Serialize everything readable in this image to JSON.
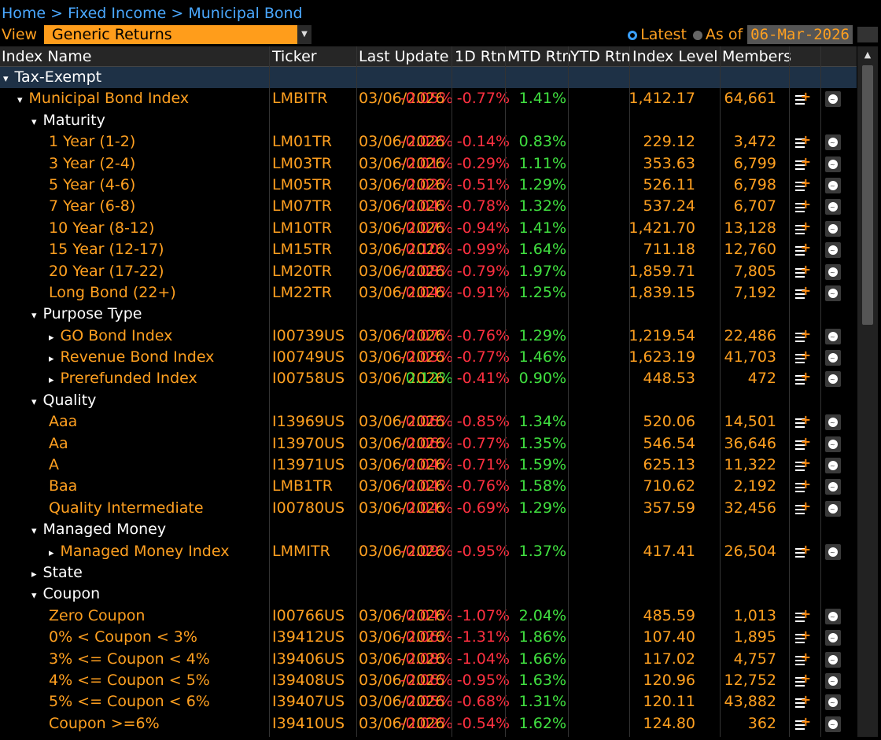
{
  "breadcrumb": {
    "home": "Home",
    "level1": "Fixed Income",
    "level2": "Municipal Bond",
    "sep": ">"
  },
  "view": {
    "label": "View",
    "selected": "Generic Returns"
  },
  "asof": {
    "latest": "Latest",
    "as_of": "As of",
    "date": "06-Mar-2026"
  },
  "columns": {
    "name": "Index Name",
    "ticker": "Ticker",
    "last_update": "Last Update",
    "d1": "1D Rtn",
    "mtd": "MTD Rtn",
    "ytd": "YTD Rtn",
    "level": "Index Level",
    "members": "Members"
  },
  "rows": [
    {
      "type": "section",
      "indent": 0,
      "expander": "▾",
      "name": "Tax-Exempt"
    },
    {
      "type": "data",
      "indent": 1,
      "expander": "▾",
      "name": "Municipal Bond Index",
      "name_color": "orange",
      "ticker": "LMBITR",
      "date": "03/06/2026",
      "d1": "-0.05%",
      "mtd": "-0.77%",
      "ytd": "1.41%",
      "level": "1,412.17",
      "members": "64,661"
    },
    {
      "type": "group",
      "indent": 2,
      "expander": "▾",
      "name": "Maturity"
    },
    {
      "type": "data",
      "indent": 3,
      "expander": "",
      "name": "1 Year (1-2)",
      "name_color": "orange",
      "ticker": "LM01TR",
      "date": "03/06/2026",
      "d1": "-0.02%",
      "mtd": "-0.14%",
      "ytd": "0.83%",
      "level": "229.12",
      "members": "3,472"
    },
    {
      "type": "data",
      "indent": 3,
      "expander": "",
      "name": "3 Year (2-4)",
      "name_color": "orange",
      "ticker": "LM03TR",
      "date": "03/06/2026",
      "d1": "-0.01%",
      "mtd": "-0.29%",
      "ytd": "1.11%",
      "level": "353.63",
      "members": "6,799"
    },
    {
      "type": "data",
      "indent": 3,
      "expander": "",
      "name": "5 Year (4-6)",
      "name_color": "orange",
      "ticker": "LM05TR",
      "date": "03/06/2026",
      "d1": "-0.02%",
      "mtd": "-0.51%",
      "ytd": "1.29%",
      "level": "526.11",
      "members": "6,798"
    },
    {
      "type": "data",
      "indent": 3,
      "expander": "",
      "name": "7 Year (6-8)",
      "name_color": "orange",
      "ticker": "LM07TR",
      "date": "03/06/2026",
      "d1": "-0.04%",
      "mtd": "-0.78%",
      "ytd": "1.32%",
      "level": "537.24",
      "members": "6,707"
    },
    {
      "type": "data",
      "indent": 3,
      "expander": "",
      "name": "10 Year (8-12)",
      "name_color": "orange",
      "ticker": "LM10TR",
      "date": "03/06/2026",
      "d1": "-0.07%",
      "mtd": "-0.94%",
      "ytd": "1.41%",
      "level": "1,421.70",
      "members": "13,128"
    },
    {
      "type": "data",
      "indent": 3,
      "expander": "",
      "name": "15 Year (12-17)",
      "name_color": "orange",
      "ticker": "LM15TR",
      "date": "03/06/2026",
      "d1": "-0.10%",
      "mtd": "-0.99%",
      "ytd": "1.64%",
      "level": "711.18",
      "members": "12,760"
    },
    {
      "type": "data",
      "indent": 3,
      "expander": "",
      "name": "20 Year (17-22)",
      "name_color": "orange",
      "ticker": "LM20TR",
      "date": "03/06/2026",
      "d1": "-0.08%",
      "mtd": "-0.79%",
      "ytd": "1.97%",
      "level": "1,859.71",
      "members": "7,805"
    },
    {
      "type": "data",
      "indent": 3,
      "expander": "",
      "name": "Long Bond (22+)",
      "name_color": "orange",
      "ticker": "LM22TR",
      "date": "03/06/2026",
      "d1": "-0.04%",
      "mtd": "-0.91%",
      "ytd": "1.25%",
      "level": "1,839.15",
      "members": "7,192"
    },
    {
      "type": "group",
      "indent": 2,
      "expander": "▾",
      "name": "Purpose Type"
    },
    {
      "type": "data",
      "indent": 3,
      "expander": "▸",
      "name": "GO Bond Index",
      "name_color": "orange",
      "ticker": "I00739US",
      "date": "03/06/2026",
      "d1": "-0.07%",
      "mtd": "-0.76%",
      "ytd": "1.29%",
      "level": "1,219.54",
      "members": "22,486"
    },
    {
      "type": "data",
      "indent": 3,
      "expander": "▸",
      "name": "Revenue Bond Index",
      "name_color": "orange",
      "ticker": "I00749US",
      "date": "03/06/2026",
      "d1": "-0.05%",
      "mtd": "-0.77%",
      "ytd": "1.46%",
      "level": "1,623.19",
      "members": "41,703"
    },
    {
      "type": "data",
      "indent": 3,
      "expander": "▸",
      "name": "Prerefunded Index",
      "name_color": "orange",
      "ticker": "I00758US",
      "date": "03/06/2026",
      "d1": "0.12%",
      "mtd": "-0.41%",
      "ytd": "0.90%",
      "level": "448.53",
      "members": "472"
    },
    {
      "type": "group",
      "indent": 2,
      "expander": "▾",
      "name": "Quality"
    },
    {
      "type": "data",
      "indent": 3,
      "expander": "",
      "name": "Aaa",
      "name_color": "orange",
      "ticker": "I13969US",
      "date": "03/06/2026",
      "d1": "-0.06%",
      "mtd": "-0.85%",
      "ytd": "1.34%",
      "level": "520.06",
      "members": "14,501"
    },
    {
      "type": "data",
      "indent": 3,
      "expander": "",
      "name": "Aa",
      "name_color": "orange",
      "ticker": "I13970US",
      "date": "03/06/2026",
      "d1": "-0.06%",
      "mtd": "-0.77%",
      "ytd": "1.35%",
      "level": "546.54",
      "members": "36,646"
    },
    {
      "type": "data",
      "indent": 3,
      "expander": "",
      "name": "A",
      "name_color": "orange",
      "ticker": "I13971US",
      "date": "03/06/2026",
      "d1": "-0.04%",
      "mtd": "-0.71%",
      "ytd": "1.59%",
      "level": "625.13",
      "members": "11,322"
    },
    {
      "type": "data",
      "indent": 3,
      "expander": "",
      "name": "Baa",
      "name_color": "orange",
      "ticker": "LMB1TR",
      "date": "03/06/2026",
      "d1": "-0.04%",
      "mtd": "-0.76%",
      "ytd": "1.58%",
      "level": "710.62",
      "members": "2,192"
    },
    {
      "type": "data",
      "indent": 3,
      "expander": "",
      "name": "Quality Intermediate",
      "name_color": "orange",
      "ticker": "I00780US",
      "date": "03/06/2026",
      "d1": "-0.04%",
      "mtd": "-0.69%",
      "ytd": "1.29%",
      "level": "357.59",
      "members": "32,456"
    },
    {
      "type": "group",
      "indent": 2,
      "expander": "▾",
      "name": "Managed Money"
    },
    {
      "type": "data",
      "indent": 3,
      "expander": "▸",
      "name": "Managed Money Index",
      "name_color": "orange",
      "ticker": "LMMITR",
      "date": "03/06/2026",
      "d1": "-0.09%",
      "mtd": "-0.95%",
      "ytd": "1.37%",
      "level": "417.41",
      "members": "26,504"
    },
    {
      "type": "group",
      "indent": 2,
      "expander": "▸",
      "name": "State"
    },
    {
      "type": "group",
      "indent": 2,
      "expander": "▾",
      "name": "Coupon"
    },
    {
      "type": "data",
      "indent": 3,
      "expander": "",
      "name": "Zero Coupon",
      "name_color": "orange",
      "ticker": "I00766US",
      "date": "03/06/2026",
      "d1": "-0.04%",
      "mtd": "-1.07%",
      "ytd": "2.04%",
      "level": "485.59",
      "members": "1,013"
    },
    {
      "type": "data",
      "indent": 3,
      "expander": "",
      "name": "0% < Coupon < 3%",
      "name_color": "orange",
      "ticker": "I39412US",
      "date": "03/06/2026",
      "d1": "-0.06%",
      "mtd": "-1.31%",
      "ytd": "1.86%",
      "level": "107.40",
      "members": "1,895"
    },
    {
      "type": "data",
      "indent": 3,
      "expander": "",
      "name": "3% <= Coupon < 4%",
      "name_color": "orange",
      "ticker": "I39406US",
      "date": "03/06/2026",
      "d1": "-0.08%",
      "mtd": "-1.04%",
      "ytd": "1.66%",
      "level": "117.02",
      "members": "4,757"
    },
    {
      "type": "data",
      "indent": 3,
      "expander": "",
      "name": "4% <= Coupon < 5%",
      "name_color": "orange",
      "ticker": "I39408US",
      "date": "03/06/2026",
      "d1": "-0.06%",
      "mtd": "-0.95%",
      "ytd": "1.63%",
      "level": "120.96",
      "members": "12,752"
    },
    {
      "type": "data",
      "indent": 3,
      "expander": "",
      "name": "5% <= Coupon < 6%",
      "name_color": "orange",
      "ticker": "I39407US",
      "date": "03/06/2026",
      "d1": "-0.05%",
      "mtd": "-0.68%",
      "ytd": "1.31%",
      "level": "120.11",
      "members": "43,882"
    },
    {
      "type": "data",
      "indent": 3,
      "expander": "",
      "name": "Coupon >=6%",
      "name_color": "orange",
      "ticker": "I39410US",
      "date": "03/06/2026",
      "d1": "-0.02%",
      "mtd": "-0.54%",
      "ytd": "1.62%",
      "level": "124.80",
      "members": "362"
    }
  ],
  "icons": {
    "add": "add-to-list-icon",
    "chart": "chart-icon",
    "scroll_up": "scroll-up-icon"
  },
  "colors": {
    "orange": "#ffa020",
    "negative": "#ff3040",
    "positive": "#40e040",
    "link": "#4aa8ff",
    "section_bg": "#1e3146"
  }
}
